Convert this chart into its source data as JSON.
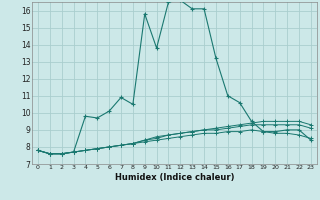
{
  "xlabel": "Humidex (Indice chaleur)",
  "background_color": "#cce8e8",
  "grid_color": "#aacece",
  "line_color": "#1a7870",
  "x_values": [
    0,
    1,
    2,
    3,
    4,
    5,
    6,
    7,
    8,
    9,
    10,
    11,
    12,
    13,
    14,
    15,
    16,
    17,
    18,
    19,
    20,
    21,
    22,
    23
  ],
  "main_line": [
    7.8,
    7.6,
    7.6,
    7.7,
    9.8,
    9.7,
    10.1,
    10.9,
    10.5,
    15.8,
    13.8,
    16.5,
    16.6,
    16.1,
    16.1,
    13.2,
    11.0,
    10.6,
    9.5,
    8.9,
    8.9,
    9.0,
    9.0,
    8.4
  ],
  "line2": [
    7.8,
    7.6,
    7.6,
    7.7,
    7.8,
    7.9,
    8.0,
    8.1,
    8.2,
    8.4,
    8.5,
    8.7,
    8.8,
    8.9,
    9.0,
    9.1,
    9.2,
    9.3,
    9.4,
    9.5,
    9.5,
    9.5,
    9.5,
    9.3
  ],
  "line3": [
    7.8,
    7.6,
    7.6,
    7.7,
    7.8,
    7.9,
    8.0,
    8.1,
    8.2,
    8.4,
    8.6,
    8.7,
    8.8,
    8.9,
    9.0,
    9.0,
    9.1,
    9.2,
    9.3,
    9.3,
    9.3,
    9.3,
    9.3,
    9.1
  ],
  "line4": [
    7.8,
    7.6,
    7.6,
    7.7,
    7.8,
    7.9,
    8.0,
    8.1,
    8.2,
    8.3,
    8.4,
    8.5,
    8.6,
    8.7,
    8.8,
    8.8,
    8.9,
    8.9,
    9.0,
    8.9,
    8.8,
    8.8,
    8.7,
    8.5
  ],
  "ylim": [
    7.0,
    16.5
  ],
  "xlim": [
    -0.5,
    23.5
  ],
  "yticks": [
    7,
    8,
    9,
    10,
    11,
    12,
    13,
    14,
    15,
    16
  ],
  "xtick_labels": [
    "0",
    "1",
    "2",
    "3",
    "4",
    "5",
    "6",
    "7",
    "8",
    "9",
    "10",
    "11",
    "12",
    "13",
    "14",
    "15",
    "16",
    "17",
    "18",
    "19",
    "20",
    "21",
    "22",
    "23"
  ]
}
